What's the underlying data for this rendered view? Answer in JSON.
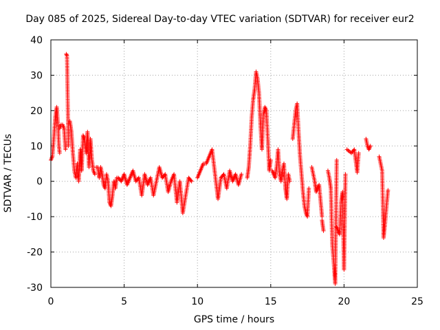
{
  "chart_data": {
    "type": "scatter",
    "title": "Day 085 of 2025, Sidereal Day-to-day VTEC variation (SDTVAR) for receiver eur2",
    "xlabel": "GPS time / hours",
    "ylabel": "SDTVAR / TECUs",
    "xlim": [
      0,
      25
    ],
    "ylim": [
      -30,
      40
    ],
    "xticks": [
      0,
      5,
      10,
      15,
      20,
      25
    ],
    "yticks": [
      -30,
      -20,
      -10,
      0,
      10,
      20,
      30,
      40
    ],
    "grid": true,
    "marker": "+",
    "color": "#ff0000",
    "series": [
      {
        "name": "SDTVAR",
        "segments": [
          {
            "x": [
              0.0,
              0.1,
              0.2,
              0.3,
              0.4,
              0.5,
              0.55,
              0.6
            ],
            "y": [
              6,
              7,
              12,
              18,
              21,
              15,
              10,
              8
            ]
          },
          {
            "x": [
              0.6,
              0.7,
              0.8,
              0.9,
              1.0
            ],
            "y": [
              15,
              16,
              16,
              15,
              9
            ]
          },
          {
            "x": [
              1.05,
              1.1,
              1.2
            ],
            "y": [
              36,
              35.5,
              10
            ]
          },
          {
            "x": [
              1.3,
              1.4,
              1.5,
              1.6,
              1.7,
              1.8,
              1.9,
              2.0,
              2.1,
              2.2,
              2.3,
              2.4,
              2.5,
              2.6,
              2.7,
              2.8,
              2.9,
              3.0
            ],
            "y": [
              17,
              14,
              8,
              3,
              1,
              5,
              0,
              9,
              3,
              13,
              12,
              8,
              14,
              4,
              12,
              6,
              3,
              2
            ]
          },
          {
            "x": [
              3.1,
              3.2,
              3.3,
              3.4,
              3.5,
              3.6,
              3.7,
              3.8,
              3.9,
              4.0,
              4.1,
              4.2,
              4.3,
              4.4,
              4.5
            ],
            "y": [
              4,
              4,
              1,
              4,
              2,
              -1,
              -2,
              2,
              0,
              -6,
              -7,
              -4,
              0,
              -2,
              1
            ]
          },
          {
            "x": [
              4.6,
              4.8,
              5.0,
              5.2,
              5.4,
              5.6,
              5.8,
              6.0,
              6.2,
              6.4,
              6.6,
              6.8,
              7.0,
              7.2,
              7.4,
              7.6,
              7.8,
              8.0,
              8.2,
              8.4,
              8.6,
              8.8,
              9.0,
              9.2,
              9.4,
              9.6
            ],
            "y": [
              1,
              0,
              2,
              -1,
              1,
              3,
              0,
              1,
              -4,
              2,
              -1,
              1,
              -4,
              0,
              4,
              1,
              2,
              -3,
              0,
              2,
              -6,
              0,
              -9,
              -4,
              1,
              0
            ]
          },
          {
            "x": [
              10.0,
              10.2,
              10.4,
              10.6,
              10.8,
              11.0,
              11.2,
              11.4,
              11.6,
              11.8,
              12.0,
              12.2,
              12.4,
              12.6,
              12.8,
              13.0
            ],
            "y": [
              1,
              3,
              5,
              5,
              7,
              9,
              2,
              -5,
              1,
              2,
              -2,
              3,
              0,
              2,
              -1,
              2
            ]
          },
          {
            "x": [
              13.4,
              13.5,
              13.6,
              13.7,
              13.8,
              13.9,
              14.0,
              14.1,
              14.2,
              14.3,
              14.4,
              14.5,
              14.6,
              14.7,
              14.8,
              14.9,
              15.0
            ],
            "y": [
              1,
              4,
              10,
              18,
              23,
              26,
              31,
              29,
              25,
              16,
              9,
              19,
              21,
              20,
              12,
              3,
              6
            ]
          },
          {
            "x": [
              15.1,
              15.2,
              15.3,
              15.4,
              15.5,
              15.6,
              15.7,
              15.8,
              15.9,
              16.0,
              16.1,
              16.2,
              16.3
            ],
            "y": [
              3,
              2,
              1,
              4,
              9,
              2,
              0,
              3,
              5,
              -2,
              -5,
              2,
              0
            ]
          },
          {
            "x": [
              16.5,
              16.6,
              16.7,
              16.8,
              16.9,
              17.0,
              17.1,
              17.2,
              17.3,
              17.4,
              17.5,
              17.6
            ],
            "y": [
              12,
              16,
              20,
              22,
              14,
              7,
              2,
              -3,
              -7,
              -9,
              -10,
              -2
            ]
          },
          {
            "x": [
              17.8,
              17.9,
              18.0,
              18.1,
              18.3,
              18.5
            ],
            "y": [
              4,
              2,
              0,
              -3,
              -1,
              -10
            ]
          },
          {
            "x": [
              18.5,
              18.6
            ],
            "y": [
              -11,
              -14
            ]
          },
          {
            "x": [
              18.9,
              19.0,
              19.1,
              19.2,
              19.3,
              19.4,
              19.5
            ],
            "y": [
              3,
              1,
              -2,
              -18,
              -23,
              -29,
              6
            ]
          },
          {
            "x": [
              19.5,
              19.6,
              19.7,
              19.8,
              19.9,
              20.0,
              20.1
            ],
            "y": [
              -13,
              -14,
              -15,
              -6,
              -3,
              -25,
              2
            ]
          },
          {
            "x": [
              20.2,
              20.5,
              20.7,
              20.9,
              21.0
            ],
            "y": [
              9,
              8,
              9,
              2.5,
              8
            ]
          },
          {
            "x": [
              21.5,
              21.6,
              21.7,
              21.8
            ],
            "y": [
              12,
              10,
              9,
              10
            ]
          },
          {
            "x": [
              22.4,
              22.5,
              22.6,
              22.7,
              22.8,
              22.9,
              23.0
            ],
            "y": [
              7,
              5,
              3,
              -16,
              -12,
              -7,
              -2.5
            ]
          }
        ]
      }
    ]
  }
}
